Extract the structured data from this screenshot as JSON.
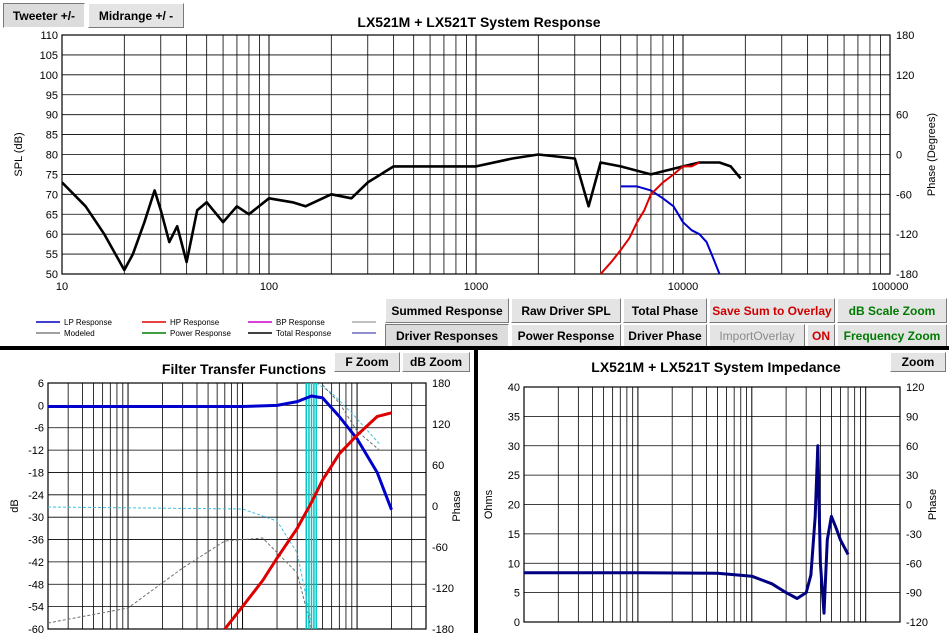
{
  "top_buttons": {
    "tweeter": "Tweeter +/-",
    "midrange": "Midrange  +/ -"
  },
  "controls": {
    "summed_response": "Summed Response",
    "raw_driver_spl": "Raw Driver SPL",
    "total_phase": "Total Phase",
    "save_sum_overlay": "Save Sum to Overlay",
    "db_scale_zoom": "dB Scale Zoom",
    "driver_responses": "Driver Responses",
    "power_response": "Power Response",
    "driver_phase": "Driver Phase",
    "import_overlay": "ImportOverlay",
    "on": "ON",
    "frequency_zoom": "Frequency Zoom"
  },
  "filter_buttons": {
    "f_zoom": "F Zoom",
    "db_zoom": "dB Zoom"
  },
  "imp_buttons": {
    "zoom": "Zoom"
  },
  "legend": [
    {
      "label": "LP Response",
      "color": "#0000cc"
    },
    {
      "label": "HP Response",
      "color": "#dd0000"
    },
    {
      "label": "BP Response",
      "color": "#cc00cc"
    },
    {
      "label": "Modeled",
      "color": "#808080"
    },
    {
      "label": "Power Response",
      "color": "#008000"
    },
    {
      "label": "Total Response",
      "color": "#000000"
    }
  ],
  "chart_data": [
    {
      "type": "line",
      "title": "LX521M + LX521T    System Response",
      "ylabel": "SPL (dB)",
      "y2label": "Phase (Degrees)",
      "xscale": "log",
      "xlim": [
        10,
        100000
      ],
      "ylim": [
        50,
        110
      ],
      "y2lim": [
        -180,
        180
      ],
      "xticks": [
        "10",
        "100",
        "1000",
        "10000",
        "100000"
      ],
      "yticks": [
        "50",
        "55",
        "60",
        "65",
        "70",
        "75",
        "80",
        "85",
        "90",
        "95",
        "100",
        "105",
        "110"
      ],
      "y2ticks": [
        "-180",
        "-120",
        "-60",
        "0",
        "60",
        "120",
        "180"
      ],
      "series": [
        {
          "name": "Total Response",
          "color": "#000000",
          "x": [
            10,
            13,
            16,
            20,
            22,
            25,
            28,
            30,
            33,
            36,
            40,
            45,
            50,
            60,
            70,
            80,
            100,
            130,
            150,
            200,
            250,
            300,
            400,
            500,
            700,
            1000,
            1500,
            2000,
            3000,
            3500,
            4000,
            5000,
            7000,
            10000,
            12000,
            15000,
            17000,
            19000
          ],
          "y": [
            73,
            67,
            60,
            51,
            55,
            63,
            71,
            66,
            58,
            62,
            53,
            66,
            68,
            63,
            67,
            65,
            69,
            68,
            67,
            70,
            69,
            73,
            77,
            77,
            77,
            77,
            79,
            80,
            79,
            67,
            78,
            77,
            75,
            77,
            78,
            78,
            77,
            74
          ]
        },
        {
          "name": "LP Response",
          "color": "#0000cc",
          "x": [
            5000,
            6000,
            7000,
            8000,
            9000,
            10000,
            11000,
            12000,
            13000,
            14000,
            15000
          ],
          "y": [
            72,
            72,
            71,
            69,
            67,
            63,
            61,
            60,
            58,
            54,
            50
          ]
        },
        {
          "name": "HP Response",
          "color": "#dd0000",
          "x": [
            4000,
            4500,
            5000,
            5500,
            6000,
            6500,
            7000,
            8000,
            9000,
            10000,
            11000,
            12000
          ],
          "y": [
            50,
            53,
            56,
            59,
            63,
            66,
            70,
            73,
            75,
            77,
            77,
            78
          ]
        }
      ]
    },
    {
      "type": "line",
      "title": "Filter Transfer Functions",
      "ylabel": "dB",
      "y2label": "Phase",
      "xscale": "log",
      "ylim": [
        -60,
        6
      ],
      "y2lim": [
        -180,
        180
      ],
      "yticks": [
        "-60",
        "-54",
        "-48",
        "-42",
        "-36",
        "-30",
        "-24",
        "-18",
        "-12",
        "-6",
        "0",
        "6"
      ],
      "y2ticks": [
        "-180",
        "-120",
        "-60",
        "0",
        "60",
        "120",
        "180"
      ],
      "series": [
        {
          "name": "LP",
          "color": "#0000cc",
          "x": [
            20,
            100,
            500,
            1000,
            2000,
            3000,
            4000,
            5000,
            7000,
            10000,
            15000,
            20000
          ],
          "y": [
            -0.3,
            -0.3,
            -0.3,
            -0.3,
            0,
            1,
            2.5,
            2,
            -3,
            -9,
            -18,
            -28
          ]
        },
        {
          "name": "HP",
          "color": "#dd0000",
          "x": [
            700,
            1000,
            1500,
            2000,
            3000,
            4000,
            5000,
            7000,
            10000,
            15000,
            20000
          ],
          "y": [
            -60,
            -54,
            -47,
            -41,
            -33,
            -26,
            -20,
            -13,
            -8,
            -3,
            -2
          ]
        }
      ]
    },
    {
      "type": "line",
      "title": "LX521M + LX521T    System Impedance",
      "ylabel": "Ohms",
      "y2label": "Phase",
      "xscale": "log",
      "ylim": [
        0,
        40
      ],
      "y2lim": [
        -120,
        120
      ],
      "yticks": [
        "0",
        "5",
        "10",
        "15",
        "20",
        "25",
        "30",
        "35",
        "40"
      ],
      "y2ticks": [
        "-120",
        "-90",
        "-60",
        "-30",
        "0",
        "30",
        "60",
        "90",
        "120"
      ],
      "series": [
        {
          "name": "Impedance",
          "color": "#000080",
          "x": [
            10,
            100,
            500,
            1000,
            1500,
            2000,
            2500,
            3000,
            3300,
            3600,
            3800,
            4000,
            4300,
            4600,
            5000,
            5500,
            6000,
            7000
          ],
          "y": [
            8.4,
            8.4,
            8.3,
            7.8,
            6.5,
            5,
            4,
            5,
            8,
            18,
            30,
            10,
            1.5,
            14,
            18,
            16,
            14,
            11.5
          ]
        }
      ]
    }
  ]
}
